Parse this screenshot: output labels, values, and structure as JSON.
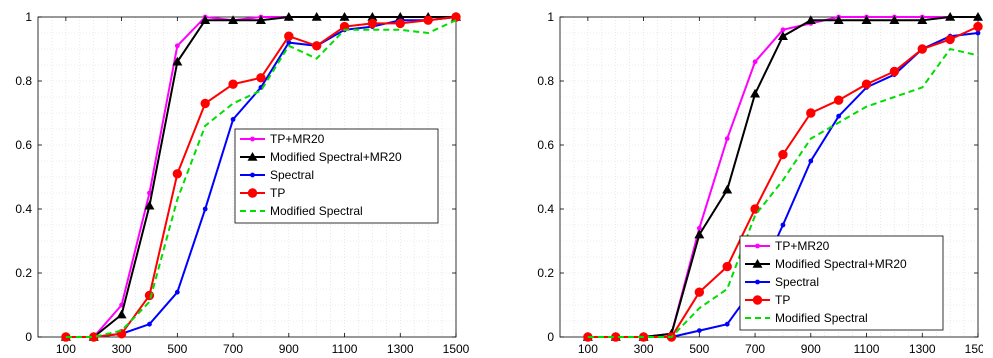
{
  "chart_data": [
    {
      "type": "line",
      "x": [
        100,
        200,
        300,
        400,
        500,
        600,
        700,
        800,
        900,
        1000,
        1100,
        1200,
        1300,
        1400,
        1500
      ],
      "xticks": [
        "100",
        "300",
        "500",
        "700",
        "900",
        "1100",
        "1300",
        "1500"
      ],
      "yticks": [
        "0",
        "0.2",
        "0.4",
        "0.6",
        "0.8",
        "1"
      ],
      "xlim": [
        0,
        1500
      ],
      "ylim": [
        0,
        1
      ],
      "grid": true,
      "legend_position": "center-right",
      "series": [
        {
          "name": "TP+MR20",
          "color": "#ff00ff",
          "marker": "dot",
          "dash": "solid",
          "values": [
            0,
            0,
            0.1,
            0.45,
            0.91,
            1.0,
            0.99,
            1.0,
            1.0,
            1.0,
            1.0,
            1.0,
            1.0,
            1.0,
            1.0
          ]
        },
        {
          "name": "Modified Spectral+MR20",
          "color": "#000000",
          "marker": "triangle",
          "dash": "solid",
          "values": [
            0,
            0,
            0.07,
            0.41,
            0.86,
            0.99,
            0.99,
            0.99,
            1.0,
            1.0,
            1.0,
            1.0,
            1.0,
            1.0,
            1.0
          ]
        },
        {
          "name": "Spectral",
          "color": "#0000ff",
          "marker": "dot",
          "dash": "solid",
          "values": [
            0,
            0,
            0.01,
            0.04,
            0.14,
            0.4,
            0.68,
            0.78,
            0.92,
            0.91,
            0.96,
            0.97,
            0.99,
            0.99,
            1.0
          ]
        },
        {
          "name": "TP",
          "color": "#ff0000",
          "marker": "circle",
          "dash": "solid",
          "values": [
            0,
            0,
            0.01,
            0.13,
            0.51,
            0.73,
            0.79,
            0.81,
            0.94,
            0.91,
            0.97,
            0.98,
            0.98,
            0.99,
            1.0
          ]
        },
        {
          "name": "Modified Spectral",
          "color": "#00dd00",
          "marker": "none",
          "dash": "dashed",
          "values": [
            0,
            0,
            0.02,
            0.11,
            0.43,
            0.66,
            0.73,
            0.77,
            0.91,
            0.87,
            0.96,
            0.96,
            0.96,
            0.95,
            0.99
          ]
        }
      ]
    },
    {
      "type": "line",
      "x": [
        100,
        200,
        300,
        400,
        500,
        600,
        700,
        800,
        900,
        1000,
        1100,
        1200,
        1300,
        1400,
        1500
      ],
      "xticks": [
        "100",
        "300",
        "500",
        "700",
        "900",
        "1100",
        "1300",
        "1500"
      ],
      "yticks": [
        "0",
        "0.2",
        "0.4",
        "0.6",
        "0.8",
        "1"
      ],
      "xlim": [
        0,
        1500
      ],
      "ylim": [
        0,
        1
      ],
      "grid": true,
      "legend_position": "bottom-right",
      "series": [
        {
          "name": "TP+MR20",
          "color": "#ff00ff",
          "marker": "dot",
          "dash": "solid",
          "values": [
            0,
            0,
            0,
            0.01,
            0.34,
            0.62,
            0.86,
            0.96,
            0.98,
            1.0,
            1.0,
            1.0,
            1.0,
            1.0,
            1.0
          ]
        },
        {
          "name": "Modified Spectral+MR20",
          "color": "#000000",
          "marker": "triangle",
          "dash": "solid",
          "values": [
            0,
            0,
            0,
            0.01,
            0.32,
            0.46,
            0.76,
            0.94,
            0.99,
            0.99,
            0.99,
            0.99,
            0.99,
            1.0,
            1.0
          ]
        },
        {
          "name": "Spectral",
          "color": "#0000ff",
          "marker": "dot",
          "dash": "solid",
          "values": [
            0,
            0,
            0,
            0,
            0.02,
            0.04,
            0.16,
            0.35,
            0.55,
            0.69,
            0.78,
            0.82,
            0.9,
            0.94,
            0.95
          ]
        },
        {
          "name": "TP",
          "color": "#ff0000",
          "marker": "circle",
          "dash": "solid",
          "values": [
            0,
            0,
            0,
            0,
            0.14,
            0.22,
            0.4,
            0.57,
            0.7,
            0.74,
            0.79,
            0.83,
            0.9,
            0.93,
            0.97
          ]
        },
        {
          "name": "Modified Spectral",
          "color": "#00dd00",
          "marker": "none",
          "dash": "dashed",
          "values": [
            0,
            0,
            0,
            0,
            0.09,
            0.15,
            0.38,
            0.49,
            0.62,
            0.67,
            0.72,
            0.75,
            0.78,
            0.9,
            0.88
          ]
        }
      ]
    }
  ]
}
